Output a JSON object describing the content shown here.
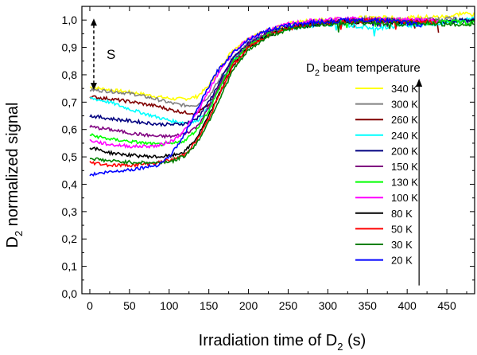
{
  "chart_data": {
    "type": "line",
    "title": "",
    "xlabel": "Irradiation time of D",
    "xlabel_sub": "2",
    "xlabel_suffix": " (s)",
    "ylabel_prefix": "D",
    "ylabel_sub": "2",
    "ylabel_suffix": " normalized signal",
    "xlim": [
      -10,
      485
    ],
    "ylim": [
      0.0,
      1.05
    ],
    "xticks": [
      0,
      50,
      100,
      150,
      200,
      250,
      300,
      350,
      400,
      450
    ],
    "xtick_labels": [
      "0",
      "50",
      "100",
      "150",
      "200",
      "250",
      "300",
      "350",
      "400",
      "450"
    ],
    "yticks": [
      0.0,
      0.1,
      0.2,
      0.3,
      0.4,
      0.5,
      0.6,
      0.7,
      0.8,
      0.9,
      1.0
    ],
    "ytick_labels": [
      "0,0",
      "0,1",
      "0,2",
      "0,3",
      "0,4",
      "0,5",
      "0,6",
      "0,7",
      "0,8",
      "0,9",
      "1,0"
    ],
    "grid": false,
    "legend": {
      "title_prefix": "D",
      "title_sub": "2",
      "title_suffix": " beam temperature",
      "position": "right"
    },
    "annotation": {
      "label": "S",
      "from_y": 0.75,
      "to_y": 1.0,
      "x": 5
    },
    "arrow": {
      "x": 415,
      "from_y": 0.03,
      "to_y": 0.78
    },
    "series": [
      {
        "name": "340 K",
        "color": "#ffff00",
        "start": 0.755,
        "x_end": 485,
        "points": [
          [
            0,
            0.755
          ],
          [
            25,
            0.745
          ],
          [
            55,
            0.735
          ],
          [
            85,
            0.72
          ],
          [
            105,
            0.712
          ],
          [
            120,
            0.712
          ],
          [
            135,
            0.72
          ],
          [
            150,
            0.76
          ],
          [
            165,
            0.83
          ],
          [
            180,
            0.89
          ],
          [
            200,
            0.935
          ],
          [
            225,
            0.965
          ],
          [
            250,
            0.985
          ],
          [
            275,
            0.995
          ],
          [
            300,
            1.0
          ],
          [
            330,
            1.005
          ],
          [
            360,
            1.01
          ],
          [
            390,
            1.005
          ],
          [
            420,
            1.01
          ],
          [
            450,
            1.012
          ],
          [
            470,
            1.025
          ],
          [
            485,
            1.02
          ]
        ]
      },
      {
        "name": "300 K",
        "color": "#808080",
        "start": 0.745,
        "x_end": 485,
        "points": [
          [
            0,
            0.745
          ],
          [
            25,
            0.74
          ],
          [
            55,
            0.73
          ],
          [
            85,
            0.71
          ],
          [
            105,
            0.695
          ],
          [
            120,
            0.688
          ],
          [
            135,
            0.69
          ],
          [
            150,
            0.72
          ],
          [
            165,
            0.79
          ],
          [
            180,
            0.86
          ],
          [
            200,
            0.915
          ],
          [
            225,
            0.955
          ],
          [
            250,
            0.975
          ],
          [
            275,
            0.99
          ],
          [
            300,
            0.995
          ],
          [
            330,
            1.0
          ],
          [
            360,
            1.005
          ],
          [
            390,
            1.0
          ],
          [
            420,
            1.0
          ],
          [
            450,
            1.005
          ],
          [
            470,
            1.0
          ],
          [
            485,
            0.995
          ]
        ]
      },
      {
        "name": "260 K",
        "color": "#800000",
        "start": 0.72,
        "x_end": 440,
        "points": [
          [
            0,
            0.72
          ],
          [
            25,
            0.712
          ],
          [
            55,
            0.7
          ],
          [
            85,
            0.685
          ],
          [
            105,
            0.67
          ],
          [
            120,
            0.662
          ],
          [
            135,
            0.66
          ],
          [
            150,
            0.69
          ],
          [
            165,
            0.76
          ],
          [
            180,
            0.84
          ],
          [
            200,
            0.905
          ],
          [
            225,
            0.95
          ],
          [
            250,
            0.975
          ],
          [
            275,
            0.985
          ],
          [
            300,
            0.99
          ],
          [
            330,
            0.995
          ],
          [
            360,
            1.0
          ],
          [
            390,
            0.995
          ],
          [
            420,
            0.995
          ],
          [
            440,
            0.99
          ]
        ]
      },
      {
        "name": "240 K",
        "color": "#00ffff",
        "start": 0.715,
        "x_end": 485,
        "points": [
          [
            0,
            0.715
          ],
          [
            25,
            0.7
          ],
          [
            55,
            0.67
          ],
          [
            85,
            0.645
          ],
          [
            105,
            0.63
          ],
          [
            120,
            0.625
          ],
          [
            135,
            0.63
          ],
          [
            150,
            0.68
          ],
          [
            165,
            0.77
          ],
          [
            180,
            0.85
          ],
          [
            200,
            0.91
          ],
          [
            225,
            0.95
          ],
          [
            250,
            0.97
          ],
          [
            275,
            0.98
          ],
          [
            300,
            0.985
          ],
          [
            330,
            0.98
          ],
          [
            360,
            0.97
          ],
          [
            390,
            0.98
          ],
          [
            420,
            0.985
          ],
          [
            450,
            0.99
          ],
          [
            470,
            1.0
          ],
          [
            485,
            1.01
          ]
        ]
      },
      {
        "name": "200 K",
        "color": "#000080",
        "start": 0.65,
        "x_end": 485,
        "points": [
          [
            0,
            0.65
          ],
          [
            25,
            0.64
          ],
          [
            55,
            0.63
          ],
          [
            85,
            0.62
          ],
          [
            105,
            0.618
          ],
          [
            120,
            0.622
          ],
          [
            135,
            0.64
          ],
          [
            150,
            0.7
          ],
          [
            165,
            0.78
          ],
          [
            180,
            0.86
          ],
          [
            200,
            0.915
          ],
          [
            225,
            0.955
          ],
          [
            250,
            0.975
          ],
          [
            275,
            0.985
          ],
          [
            300,
            0.99
          ],
          [
            330,
            0.995
          ],
          [
            360,
            1.0
          ],
          [
            390,
            0.995
          ],
          [
            420,
            0.99
          ],
          [
            450,
            0.995
          ],
          [
            485,
            1.0
          ]
        ]
      },
      {
        "name": "150 K",
        "color": "#800080",
        "start": 0.61,
        "x_end": 440,
        "points": [
          [
            0,
            0.61
          ],
          [
            25,
            0.6
          ],
          [
            55,
            0.585
          ],
          [
            85,
            0.575
          ],
          [
            105,
            0.575
          ],
          [
            120,
            0.585
          ],
          [
            135,
            0.61
          ],
          [
            150,
            0.68
          ],
          [
            165,
            0.77
          ],
          [
            180,
            0.85
          ],
          [
            200,
            0.91
          ],
          [
            225,
            0.95
          ],
          [
            250,
            0.975
          ],
          [
            275,
            0.985
          ],
          [
            300,
            0.995
          ],
          [
            330,
            1.0
          ],
          [
            360,
            1.0
          ],
          [
            390,
            0.995
          ],
          [
            420,
            1.0
          ],
          [
            440,
            0.995
          ]
        ]
      },
      {
        "name": "130 K",
        "color": "#00ff00",
        "start": 0.58,
        "x_end": 485,
        "points": [
          [
            0,
            0.58
          ],
          [
            25,
            0.565
          ],
          [
            55,
            0.555
          ],
          [
            85,
            0.545
          ],
          [
            105,
            0.548
          ],
          [
            120,
            0.56
          ],
          [
            135,
            0.6
          ],
          [
            150,
            0.67
          ],
          [
            165,
            0.76
          ],
          [
            180,
            0.845
          ],
          [
            200,
            0.905
          ],
          [
            225,
            0.95
          ],
          [
            250,
            0.97
          ],
          [
            275,
            0.985
          ],
          [
            300,
            0.99
          ],
          [
            330,
            0.995
          ],
          [
            360,
            1.0
          ],
          [
            390,
            0.995
          ],
          [
            420,
            0.99
          ],
          [
            450,
            0.995
          ],
          [
            485,
            0.99
          ]
        ]
      },
      {
        "name": "100 K",
        "color": "#ff00ff",
        "start": 0.56,
        "x_end": 440,
        "points": [
          [
            0,
            0.56
          ],
          [
            25,
            0.545
          ],
          [
            55,
            0.538
          ],
          [
            85,
            0.54
          ],
          [
            105,
            0.56
          ],
          [
            120,
            0.6
          ],
          [
            135,
            0.66
          ],
          [
            150,
            0.74
          ],
          [
            165,
            0.82
          ],
          [
            180,
            0.88
          ],
          [
            200,
            0.93
          ],
          [
            225,
            0.965
          ],
          [
            250,
            0.985
          ],
          [
            275,
            0.995
          ],
          [
            300,
            1.0
          ],
          [
            330,
            1.005
          ],
          [
            360,
            1.005
          ],
          [
            390,
            1.0
          ],
          [
            420,
            1.0
          ],
          [
            440,
            0.995
          ]
        ]
      },
      {
        "name": "80 K",
        "color": "#000000",
        "start": 0.535,
        "x_end": 415,
        "points": [
          [
            0,
            0.535
          ],
          [
            25,
            0.515
          ],
          [
            55,
            0.505
          ],
          [
            85,
            0.5
          ],
          [
            105,
            0.505
          ],
          [
            120,
            0.52
          ],
          [
            135,
            0.57
          ],
          [
            150,
            0.65
          ],
          [
            165,
            0.74
          ],
          [
            180,
            0.83
          ],
          [
            200,
            0.9
          ],
          [
            225,
            0.945
          ],
          [
            250,
            0.97
          ],
          [
            275,
            0.98
          ],
          [
            300,
            0.99
          ],
          [
            330,
            0.995
          ],
          [
            360,
            0.995
          ],
          [
            390,
            0.99
          ],
          [
            415,
            0.985
          ]
        ]
      },
      {
        "name": "50 K",
        "color": "#ff0000",
        "start": 0.48,
        "x_end": 440,
        "points": [
          [
            0,
            0.48
          ],
          [
            25,
            0.47
          ],
          [
            55,
            0.47
          ],
          [
            85,
            0.478
          ],
          [
            105,
            0.49
          ],
          [
            120,
            0.51
          ],
          [
            135,
            0.56
          ],
          [
            150,
            0.64
          ],
          [
            165,
            0.74
          ],
          [
            180,
            0.83
          ],
          [
            200,
            0.9
          ],
          [
            225,
            0.945
          ],
          [
            250,
            0.97
          ],
          [
            275,
            0.985
          ],
          [
            300,
            0.99
          ],
          [
            330,
            0.995
          ],
          [
            360,
            1.0
          ],
          [
            390,
            0.995
          ],
          [
            420,
            0.995
          ],
          [
            440,
            0.99
          ]
        ]
      },
      {
        "name": "30 K",
        "color": "#008000",
        "start": 0.495,
        "x_end": 485,
        "points": [
          [
            0,
            0.495
          ],
          [
            25,
            0.485
          ],
          [
            55,
            0.48
          ],
          [
            85,
            0.478
          ],
          [
            105,
            0.485
          ],
          [
            120,
            0.505
          ],
          [
            135,
            0.55
          ],
          [
            150,
            0.63
          ],
          [
            165,
            0.72
          ],
          [
            180,
            0.815
          ],
          [
            200,
            0.89
          ],
          [
            225,
            0.94
          ],
          [
            250,
            0.965
          ],
          [
            275,
            0.98
          ],
          [
            300,
            0.985
          ],
          [
            330,
            0.99
          ],
          [
            360,
            0.99
          ],
          [
            390,
            0.985
          ],
          [
            420,
            0.99
          ],
          [
            450,
            0.985
          ],
          [
            470,
            0.98
          ],
          [
            485,
            0.99
          ]
        ]
      },
      {
        "name": "20 K",
        "color": "#0000ff",
        "start": 0.435,
        "x_end": 420,
        "points": [
          [
            0,
            0.435
          ],
          [
            25,
            0.445
          ],
          [
            55,
            0.455
          ],
          [
            85,
            0.47
          ],
          [
            100,
            0.5
          ],
          [
            115,
            0.56
          ],
          [
            130,
            0.64
          ],
          [
            145,
            0.73
          ],
          [
            160,
            0.81
          ],
          [
            180,
            0.88
          ],
          [
            200,
            0.93
          ],
          [
            225,
            0.965
          ],
          [
            250,
            0.98
          ],
          [
            275,
            0.99
          ],
          [
            300,
            0.995
          ],
          [
            330,
            1.0
          ],
          [
            360,
            1.0
          ],
          [
            390,
            0.995
          ],
          [
            420,
            0.98
          ]
        ]
      }
    ]
  }
}
